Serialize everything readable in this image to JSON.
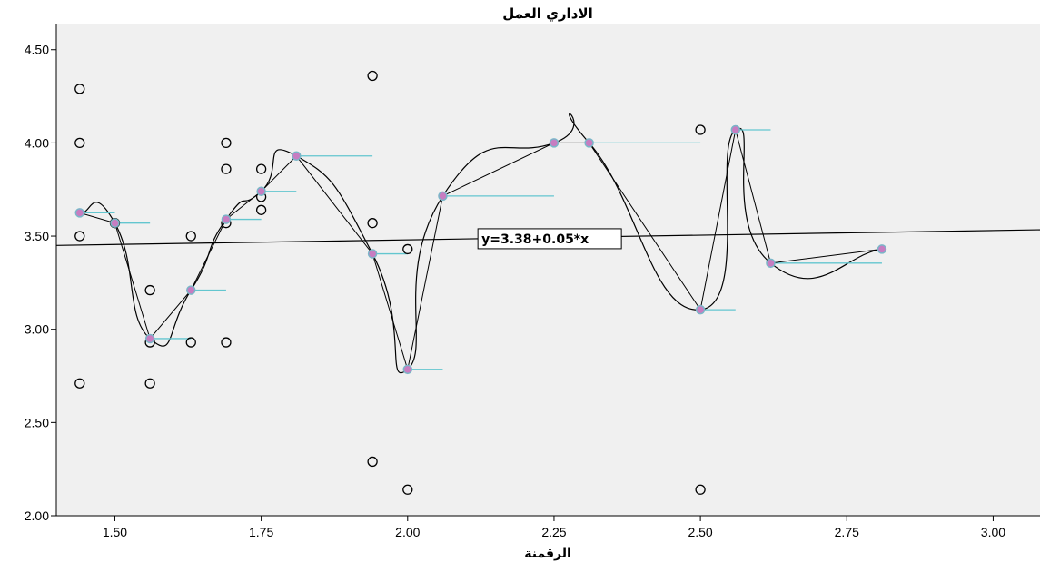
{
  "chart_data": {
    "type": "scatter",
    "title": "الاداري العمل",
    "xlabel": "الرقمنة",
    "ylabel": "",
    "xlim": [
      1.4,
      3.08
    ],
    "ylim": [
      2.0,
      4.64
    ],
    "x_ticks": [
      "1.50",
      "1.75",
      "2.00",
      "2.25",
      "2.50",
      "2.75",
      "3.00"
    ],
    "y_ticks": [
      "2.00",
      "2.50",
      "3.00",
      "3.50",
      "4.00",
      "4.50"
    ],
    "grid": false,
    "background_color": "#f0f0f0",
    "scatter_points": [
      {
        "x": 1.44,
        "y": 4.29
      },
      {
        "x": 1.44,
        "y": 4.0
      },
      {
        "x": 1.44,
        "y": 3.5
      },
      {
        "x": 1.44,
        "y": 2.71
      },
      {
        "x": 1.5,
        "y": 3.57
      },
      {
        "x": 1.56,
        "y": 3.21
      },
      {
        "x": 1.56,
        "y": 2.93
      },
      {
        "x": 1.56,
        "y": 2.71
      },
      {
        "x": 1.63,
        "y": 3.5
      },
      {
        "x": 1.63,
        "y": 2.93
      },
      {
        "x": 1.69,
        "y": 4.0
      },
      {
        "x": 1.69,
        "y": 3.86
      },
      {
        "x": 1.69,
        "y": 3.57
      },
      {
        "x": 1.69,
        "y": 2.93
      },
      {
        "x": 1.75,
        "y": 3.86
      },
      {
        "x": 1.75,
        "y": 3.71
      },
      {
        "x": 1.75,
        "y": 3.64
      },
      {
        "x": 1.94,
        "y": 4.36
      },
      {
        "x": 1.94,
        "y": 3.57
      },
      {
        "x": 1.94,
        "y": 2.29
      },
      {
        "x": 2.0,
        "y": 3.43
      },
      {
        "x": 2.0,
        "y": 2.14
      },
      {
        "x": 2.5,
        "y": 4.07
      },
      {
        "x": 2.5,
        "y": 2.14
      }
    ],
    "mean_points": [
      {
        "x": 1.44,
        "y": 3.625
      },
      {
        "x": 1.5,
        "y": 3.57
      },
      {
        "x": 1.56,
        "y": 2.95
      },
      {
        "x": 1.63,
        "y": 3.21
      },
      {
        "x": 1.69,
        "y": 3.59
      },
      {
        "x": 1.75,
        "y": 3.74
      },
      {
        "x": 1.81,
        "y": 3.93
      },
      {
        "x": 1.94,
        "y": 3.405
      },
      {
        "x": 2.0,
        "y": 2.785
      },
      {
        "x": 2.06,
        "y": 3.715
      },
      {
        "x": 2.25,
        "y": 4.0
      },
      {
        "x": 2.31,
        "y": 4.0
      },
      {
        "x": 2.5,
        "y": 3.105
      },
      {
        "x": 2.56,
        "y": 4.07
      },
      {
        "x": 2.62,
        "y": 3.355
      },
      {
        "x": 2.81,
        "y": 3.43
      }
    ],
    "spikes": [
      {
        "x": 1.44,
        "y": 3.625,
        "x2": 1.5
      },
      {
        "x": 1.5,
        "y": 3.57,
        "x2": 1.56
      },
      {
        "x": 1.56,
        "y": 2.95,
        "x2": 1.63
      },
      {
        "x": 1.63,
        "y": 3.21,
        "x2": 1.69
      },
      {
        "x": 1.69,
        "y": 3.59,
        "x2": 1.75
      },
      {
        "x": 1.75,
        "y": 3.74,
        "x2": 1.81
      },
      {
        "x": 1.81,
        "y": 3.93,
        "x2": 1.94
      },
      {
        "x": 1.94,
        "y": 3.405,
        "x2": 2.0
      },
      {
        "x": 2.0,
        "y": 2.785,
        "x2": 2.06
      },
      {
        "x": 2.06,
        "y": 3.715,
        "x2": 2.25
      },
      {
        "x": 2.31,
        "y": 4.0,
        "x2": 2.5
      },
      {
        "x": 2.5,
        "y": 3.105,
        "x2": 2.56
      },
      {
        "x": 2.56,
        "y": 4.07,
        "x2": 2.62
      },
      {
        "x": 2.62,
        "y": 3.355,
        "x2": 2.81
      }
    ],
    "fit_line": {
      "intercept": 3.38,
      "slope": 0.05,
      "label": "y=3.38+0.05*x",
      "label_x": 2.12
    },
    "colors": {
      "plot_background": "#f0f0f0",
      "scatter_marker": "#000000",
      "mean_fill": "#c77dc1",
      "mean_edge": "#7ab6c8",
      "spike": "#63c6cf",
      "line": "#000000"
    }
  }
}
